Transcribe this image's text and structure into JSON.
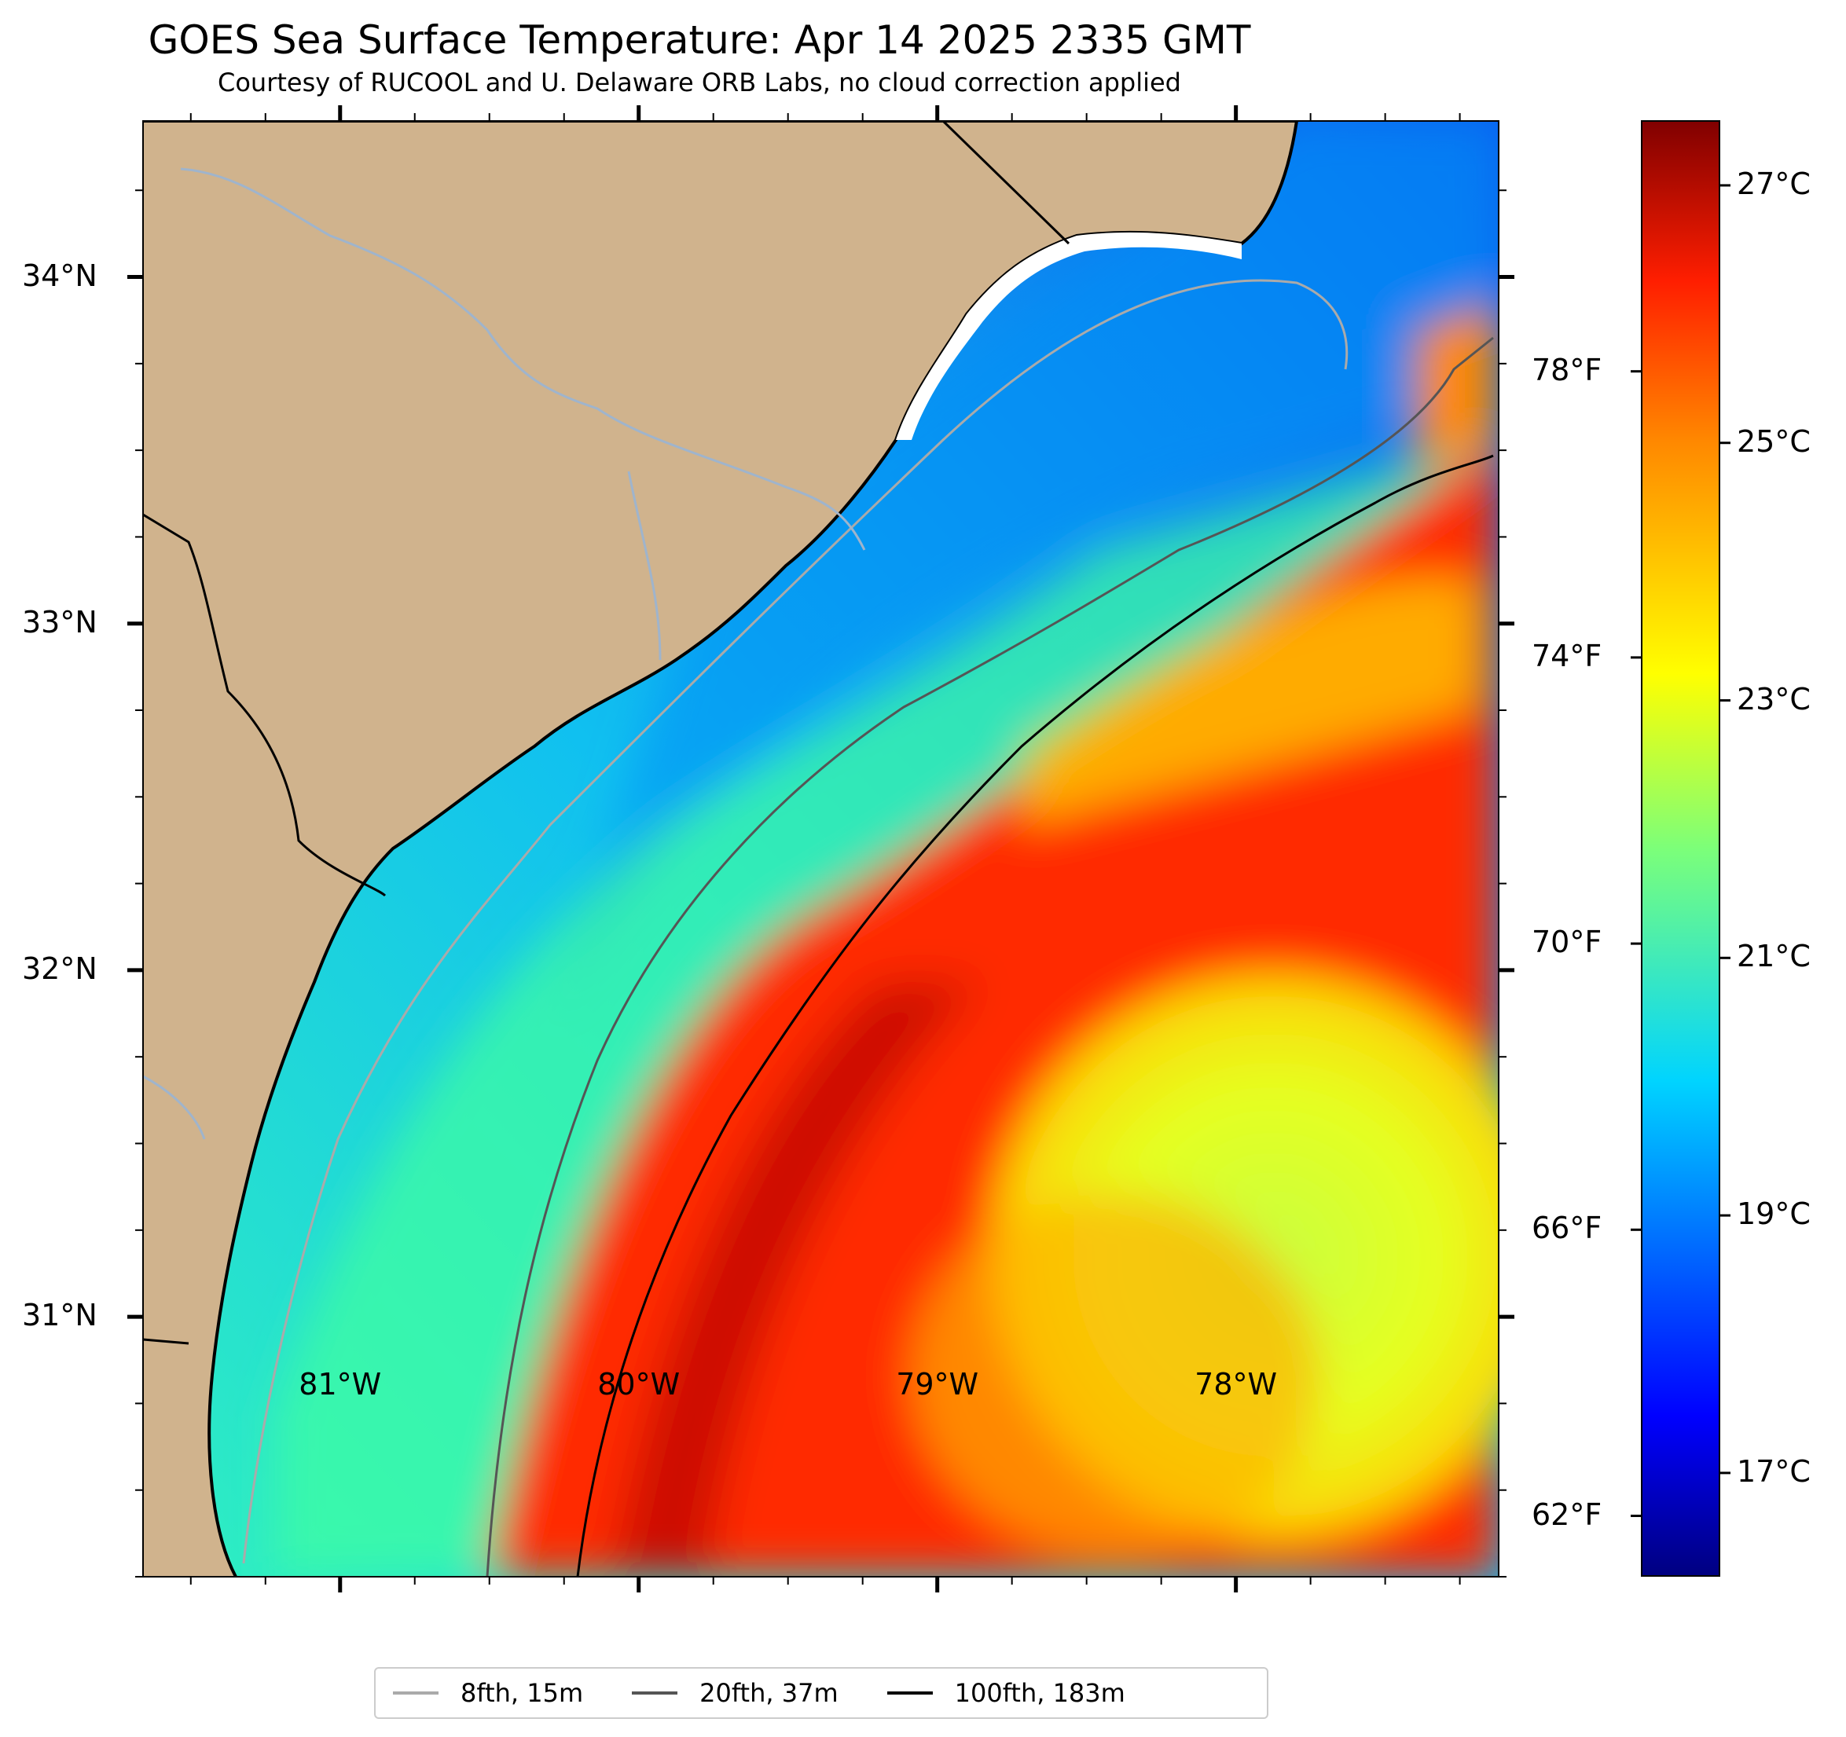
{
  "title": "GOES Sea Surface Temperature: Apr 14 2025 2335 GMT",
  "subtitle": "Courtesy of RUCOOL and U. Delaware ORB Labs, no cloud correction applied",
  "map": {
    "lat_ticks": [
      {
        "label": "34°N",
        "lat": 34
      },
      {
        "label": "33°N",
        "lat": 33
      },
      {
        "label": "32°N",
        "lat": 32
      },
      {
        "label": "31°N",
        "lat": 31
      }
    ],
    "lon_ticks": [
      {
        "label": "81°W",
        "lon": -81
      },
      {
        "label": "80°W",
        "lon": -80
      },
      {
        "label": "79°W",
        "lon": -79
      },
      {
        "label": "78°W",
        "lon": -78
      }
    ],
    "lat_range": [
      30.25,
      34.45
    ],
    "lon_range": [
      -81.66,
      -77.12
    ],
    "colors": {
      "land": "#d0b38d",
      "rivers": "#9fb4cc",
      "coastline": "#000000"
    }
  },
  "colorbar": {
    "celsius_ticks": [
      "27°C",
      "25°C",
      "23°C",
      "21°C",
      "19°C",
      "17°C"
    ],
    "fahrenheit_ticks": [
      "78°F",
      "74°F",
      "70°F",
      "66°F",
      "62°F"
    ],
    "celsius_values": [
      27,
      25,
      23,
      21,
      19,
      17
    ],
    "fahrenheit_values": [
      78,
      74,
      70,
      66,
      62
    ],
    "range_c": [
      16.2,
      27.5
    ],
    "colormap": "jet"
  },
  "legend": [
    {
      "label": "8fth, 15m",
      "color": "#aaaaaa"
    },
    {
      "label": "20fth, 37m",
      "color": "#555555"
    },
    {
      "label": "100fth, 183m",
      "color": "#000000"
    }
  ]
}
